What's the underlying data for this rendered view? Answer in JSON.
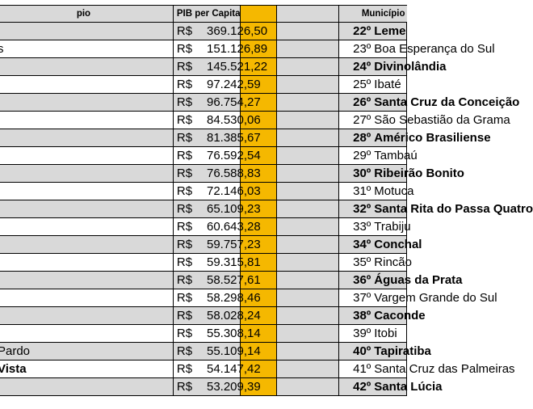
{
  "header": {
    "left_col": "pio",
    "pib_col": "PIB per Capita",
    "municipio_col": "Município"
  },
  "rows": [
    {
      "left": "",
      "currency": "R$",
      "value": "369.126,50",
      "rank": "22º",
      "city": "Leme",
      "bold": true
    },
    {
      "left": "s",
      "currency": "R$",
      "value": "151.126,89",
      "rank": "23º",
      "city": "Boa Esperança do Sul",
      "bold": false
    },
    {
      "left": "",
      "currency": "R$",
      "value": "145.521,22",
      "rank": "24º",
      "city": "Divinolândia",
      "bold": true
    },
    {
      "left": "",
      "currency": "R$",
      "value": "97.242,59",
      "rank": "25º",
      "city": "Ibaté",
      "bold": false
    },
    {
      "left": "",
      "currency": "R$",
      "value": "96.754,27",
      "rank": "26º",
      "city": "Santa Cruz da Conceição",
      "bold": true
    },
    {
      "left": "",
      "currency": "R$",
      "value": "84.530,06",
      "rank": "27º",
      "city": "São Sebastião da Grama",
      "bold": false
    },
    {
      "left": "",
      "currency": "R$",
      "value": "81.385,67",
      "rank": "28º",
      "city": "Américo Brasiliense",
      "bold": true
    },
    {
      "left": "",
      "currency": "R$",
      "value": "76.592,54",
      "rank": "29º",
      "city": "Tambaú",
      "bold": false
    },
    {
      "left": "",
      "currency": "R$",
      "value": "76.588,83",
      "rank": "30º",
      "city": "Ribeirão Bonito",
      "bold": true
    },
    {
      "left": "",
      "currency": "R$",
      "value": "72.146,03",
      "rank": "31º",
      "city": "Motuca",
      "bold": false
    },
    {
      "left": "",
      "currency": "R$",
      "value": "65.109,23",
      "rank": "32º",
      "city": "Santa Rita do Passa Quatro",
      "bold": true
    },
    {
      "left": "",
      "currency": "R$",
      "value": "60.643,28",
      "rank": "33º",
      "city": "Trabiju",
      "bold": false
    },
    {
      "left": "",
      "currency": "R$",
      "value": "59.757,23",
      "rank": "34º",
      "city": "Conchal",
      "bold": true
    },
    {
      "left": "",
      "currency": "R$",
      "value": "59.315,81",
      "rank": "35º",
      "city": "Rincão",
      "bold": false
    },
    {
      "left": "",
      "currency": "R$",
      "value": "58.527,61",
      "rank": "36º",
      "city": "Águas da Prata",
      "bold": true
    },
    {
      "left": "",
      "currency": "R$",
      "value": "58.298,46",
      "rank": "37º",
      "city": "Vargem Grande do Sul",
      "bold": false
    },
    {
      "left": "",
      "currency": "R$",
      "value": "58.028,24",
      "rank": "38º",
      "city": "Caconde",
      "bold": true
    },
    {
      "left": "",
      "currency": "R$",
      "value": "55.308,14",
      "rank": "39º",
      "city": "Itobi",
      "bold": false
    },
    {
      "left": "Pardo",
      "currency": "R$",
      "value": "55.109,14",
      "rank": "40º",
      "city": "Tapiratiba",
      "bold": true
    },
    {
      "left": "Vista",
      "currency": "R$",
      "value": "54.147,42",
      "rank": "41º",
      "city": "Santa Cruz das Palmeiras",
      "bold": false
    },
    {
      "left": "",
      "currency": "R$",
      "value": "53.209,39",
      "rank": "42º",
      "city": "Santa Lúcia",
      "bold": true
    }
  ],
  "colors": {
    "separator": "#f5b800",
    "shade": "#d9d9d9"
  }
}
